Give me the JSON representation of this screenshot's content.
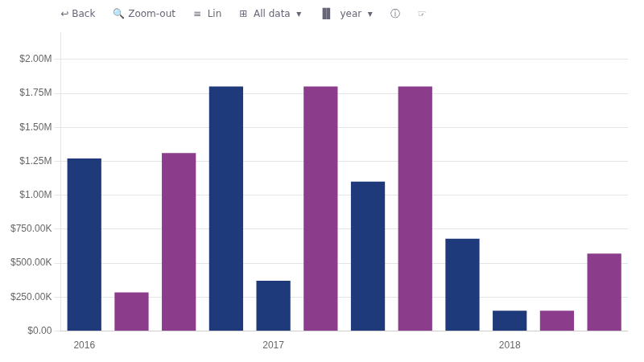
{
  "chart_data": {
    "type": "bar",
    "categories": [
      "2016",
      null,
      null,
      null,
      "2017",
      null,
      null,
      null,
      null,
      "2018",
      null,
      null
    ],
    "values": [
      1270000,
      285000,
      1310000,
      1800000,
      370000,
      1800000,
      1100000,
      1800000,
      680000,
      150000,
      150000,
      570000
    ],
    "colors": [
      "#1e3a7a",
      "#8b3d8b",
      "#8b3d8b",
      "#1e3a7a",
      "#1e3a7a",
      "#8b3d8b",
      "#1e3a7a",
      "#8b3d8b",
      "#1e3a7a",
      "#1e3a7a",
      "#8b3d8b",
      "#8b3d8b"
    ],
    "ylim": [
      0,
      2200000
    ],
    "yticks": [
      {
        "value": 0,
        "label": "$0.00"
      },
      {
        "value": 250000,
        "label": "$250.00K"
      },
      {
        "value": 500000,
        "label": "$500.00K"
      },
      {
        "value": 750000,
        "label": "$750.00K"
      },
      {
        "value": 1000000,
        "label": "$1.00M"
      },
      {
        "value": 1250000,
        "label": "$1.25M"
      },
      {
        "value": 1500000,
        "label": "$1.50M"
      },
      {
        "value": 1750000,
        "label": "$1.75M"
      },
      {
        "value": 2000000,
        "label": "$2.00M"
      }
    ],
    "grid": true,
    "annotations": [
      "↩ Back",
      "🔍 Zoom-out",
      "≡  Lin",
      "⊞  All data  ▾",
      "▐▌  year  ▾",
      "ⓘ",
      "☞"
    ]
  }
}
